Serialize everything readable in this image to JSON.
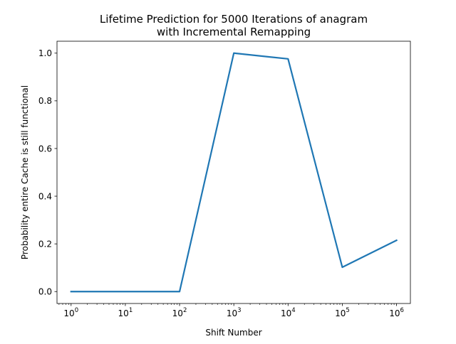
{
  "chart_data": {
    "type": "line",
    "title_line1": "Lifetime Prediction for 5000 Iterations of anagram",
    "title_line2": "with Incremental Remapping",
    "xlabel": "Shift Number",
    "ylabel": "Probability entire Cache is still functional",
    "x_scale": "log",
    "xlim": [
      0.55,
      1800000
    ],
    "ylim": [
      -0.05,
      1.05
    ],
    "x_ticks": [
      {
        "value": 1,
        "base": "10",
        "exp": "0"
      },
      {
        "value": 10,
        "base": "10",
        "exp": "1"
      },
      {
        "value": 100,
        "base": "10",
        "exp": "2"
      },
      {
        "value": 1000,
        "base": "10",
        "exp": "3"
      },
      {
        "value": 10000,
        "base": "10",
        "exp": "4"
      },
      {
        "value": 100000,
        "base": "10",
        "exp": "5"
      },
      {
        "value": 1000000,
        "base": "10",
        "exp": "6"
      }
    ],
    "y_ticks": [
      {
        "value": 0.0,
        "label": "0.0"
      },
      {
        "value": 0.2,
        "label": "0.2"
      },
      {
        "value": 0.4,
        "label": "0.4"
      },
      {
        "value": 0.6,
        "label": "0.6"
      },
      {
        "value": 0.8,
        "label": "0.8"
      },
      {
        "value": 1.0,
        "label": "1.0"
      }
    ],
    "grid": false,
    "series": [
      {
        "color": "#1f77b4",
        "x": [
          1,
          10,
          100,
          1000,
          10000,
          100000,
          1000000
        ],
        "y": [
          0.0,
          0.0,
          0.0,
          1.0,
          0.976,
          0.102,
          0.215
        ]
      }
    ]
  }
}
